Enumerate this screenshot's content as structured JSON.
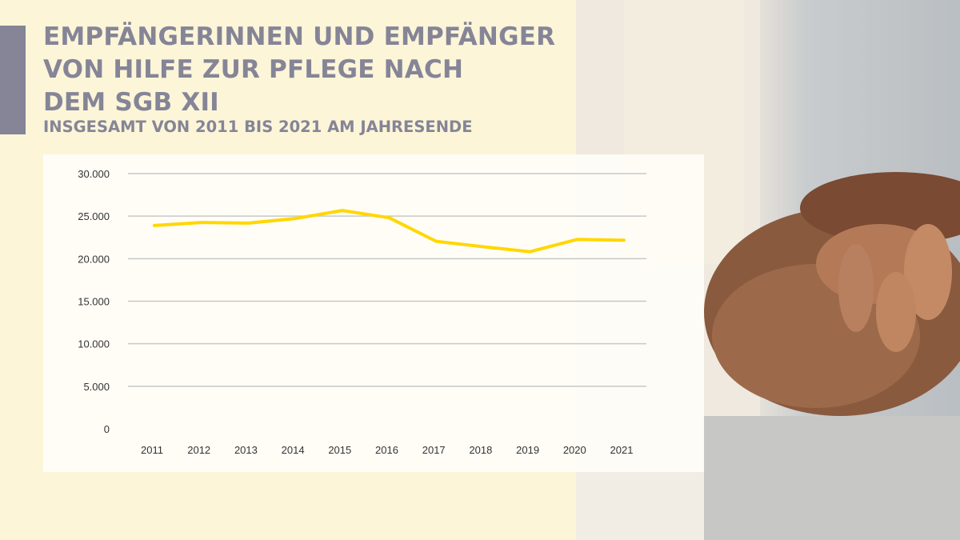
{
  "title": "EMPFÄNGERINNEN UND EMPFÄNGER VON HILFE ZUR PFLEGE NACH DEM SGB XII",
  "title_lines": [
    "EMPFÄNGERINNEN UND EMPFÄNGER",
    "VON HILFE ZUR PFLEGE NACH",
    "DEM SGB XII"
  ],
  "subtitle": "INSGESAMT VON 2011 BIS 2021 AM JAHRESENDE",
  "colors": {
    "background": "#fdf5d8",
    "title": "#858597",
    "line": "#ffd700",
    "grid": "#c8c8c8"
  },
  "chart_data": {
    "type": "line",
    "title": "",
    "xlabel": "",
    "ylabel": "",
    "categories": [
      "2011",
      "2012",
      "2013",
      "2014",
      "2015",
      "2016",
      "2017",
      "2018",
      "2019",
      "2020",
      "2021"
    ],
    "values": [
      23900,
      24250,
      24180,
      24720,
      25660,
      24810,
      22040,
      21400,
      20820,
      22260,
      22170
    ],
    "ylim": [
      0,
      30000
    ],
    "yticks": [
      0,
      5000,
      10000,
      15000,
      20000,
      25000,
      30000
    ],
    "ytick_labels": [
      "0",
      "5.000",
      "10.000",
      "15.000",
      "20.000",
      "25.000",
      "30.000"
    ],
    "grid": true,
    "legend": "none"
  }
}
